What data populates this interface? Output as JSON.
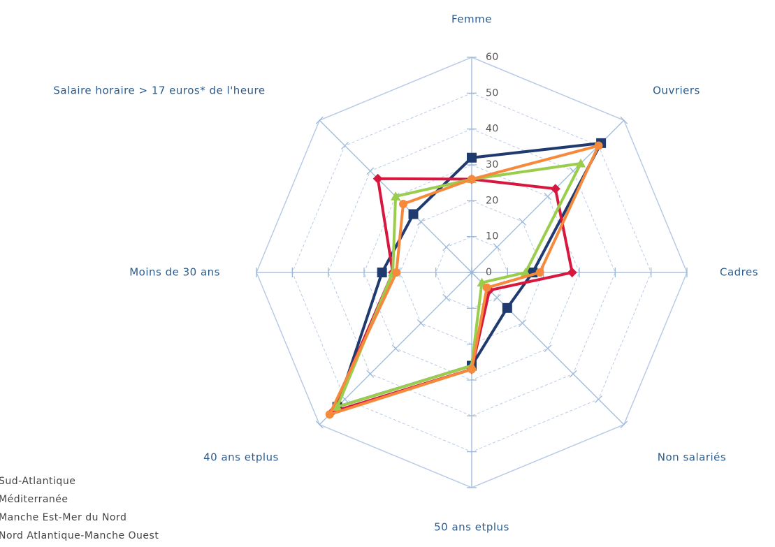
{
  "chart_data": {
    "type": "radar",
    "categories": [
      "Femme",
      "Ouvriers",
      "Cadres",
      "Non salariés",
      "50 ans etplus",
      "40 ans etplus",
      "Moins de 30 ans",
      "Salaire horaire > 17 euros* de l'heure"
    ],
    "ylim": [
      0,
      60
    ],
    "yticks": [
      0,
      10,
      20,
      30,
      40,
      50,
      60
    ],
    "grid": true,
    "series": [
      {
        "name": "Sud-Atlantique",
        "color": "#1f3a6e",
        "values": [
          32,
          51,
          17,
          14,
          26,
          53,
          25,
          23
        ]
      },
      {
        "name": "Méditerranée",
        "color": "#d8173f",
        "values": [
          26,
          33,
          28,
          7,
          27,
          55,
          22,
          37
        ]
      },
      {
        "name": "Manche Est-Mer du Nord",
        "color": "#9acd4c",
        "values": [
          26,
          43,
          15,
          4,
          26,
          53,
          22,
          30
        ]
      },
      {
        "name": "Nord Atlantique-Manche Ouest",
        "color": "#f58a3c",
        "values": [
          26,
          50,
          19,
          6,
          27,
          56,
          21,
          27
        ]
      }
    ]
  }
}
